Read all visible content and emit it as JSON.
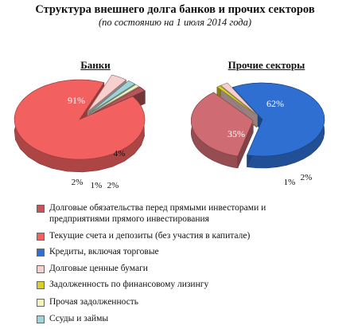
{
  "title": "Структура внешнего долга банков и прочих секторов",
  "subtitle": "(по состоянию на 1 июля 2014 года)",
  "chart_data": [
    {
      "type": "pie",
      "title": "Банки",
      "slices": [
        {
          "category": "Текущие счета и депозиты (без участия в капитале)",
          "value": 91,
          "label": "91%",
          "color": "#f26060"
        },
        {
          "category": "Долговые ценные бумаги",
          "value": 4,
          "label": "4%",
          "color": "#f7cfcf",
          "exploded": true
        },
        {
          "category": "Ссуды и займы",
          "value": 2,
          "label": "2%",
          "color": "#9fd4d6",
          "exploded": true
        },
        {
          "category": "Прочая задолженность",
          "value": 1,
          "label": "1%",
          "color": "#f5f2c0",
          "exploded": true
        },
        {
          "category": "Долговые обязательства перед прямыми инвесторами и предприятиями прямого инвестирования",
          "value": 2,
          "label": "2%",
          "color": "#b8555a",
          "exploded": true
        }
      ]
    },
    {
      "type": "pie",
      "title": "Прочие секторы",
      "slices": [
        {
          "category": "Кредиты, включая торговые",
          "value": 62,
          "label": "62%",
          "color": "#2f6fd1"
        },
        {
          "category": "Долговые обязательства перед прямыми инвесторами и предприятиями прямого инвестирования",
          "value": 35,
          "label": "35%",
          "color": "#cf6b72",
          "exploded": true
        },
        {
          "category": "Задолженность по финансовому лизингу",
          "value": 1,
          "label": "1%",
          "color": "#d8cf2a",
          "exploded": true
        },
        {
          "category": "Долговые ценные бумаги",
          "value": 2,
          "label": "2%",
          "color": "#f7cfcf",
          "exploded": true
        }
      ]
    }
  ],
  "legend": [
    {
      "label": "Долговые обязательства перед прямыми инвесторами и предприятиями прямого инвестирования",
      "color": "#c9535b"
    },
    {
      "label": "Текущие счета и депозиты (без участия в капитале)",
      "color": "#f26060"
    },
    {
      "label": "Кредиты, включая торговые",
      "color": "#2f6fd1"
    },
    {
      "label": "Долговые ценные бумаги",
      "color": "#f7cfcf"
    },
    {
      "label": "Задолженность по финансовому лизингу",
      "color": "#d8cf2a"
    },
    {
      "label": "Прочая задолженность",
      "color": "#f5f2c0"
    },
    {
      "label": "Ссуды и займы",
      "color": "#9fd4d6"
    }
  ]
}
